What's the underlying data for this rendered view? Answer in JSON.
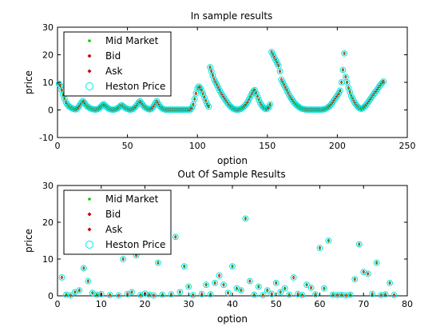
{
  "chart_data": [
    {
      "type": "scatter",
      "title": "In sample results",
      "xlabel": "option",
      "ylabel": "price",
      "xlim": [
        0,
        250
      ],
      "ylim": [
        -10,
        30
      ],
      "x_ticks": [
        "0",
        "50",
        "100",
        "150",
        "200",
        "250"
      ],
      "y_ticks": [
        "-10",
        "0",
        "10",
        "20",
        "30"
      ],
      "grid": false,
      "legend_position": "top-left",
      "series": [
        {
          "name": "Mid Market",
          "color": "#00cc00",
          "marker": "dot"
        },
        {
          "name": "Bid",
          "color": "#cc0000",
          "marker": "diamond"
        },
        {
          "name": "Ask",
          "color": "#cc0000",
          "marker": "diamond"
        },
        {
          "name": "Heston Price",
          "color": "#00e5e5",
          "marker": "circle"
        }
      ],
      "points": [
        [
          1,
          9.5
        ],
        [
          2,
          8.8
        ],
        [
          3,
          7.2
        ],
        [
          4,
          5.5
        ],
        [
          5,
          4
        ],
        [
          6,
          2.8
        ],
        [
          7,
          2
        ],
        [
          8,
          1.4
        ],
        [
          9,
          1
        ],
        [
          10,
          0.7
        ],
        [
          11,
          0.5
        ],
        [
          12,
          0.3
        ],
        [
          13,
          0.2
        ],
        [
          14,
          0.5
        ],
        [
          15,
          1
        ],
        [
          16,
          1.8
        ],
        [
          17,
          2.6
        ],
        [
          18,
          3.2
        ],
        [
          19,
          2.8
        ],
        [
          20,
          2
        ],
        [
          21,
          1.4
        ],
        [
          22,
          1
        ],
        [
          23,
          0.7
        ],
        [
          24,
          0.5
        ],
        [
          25,
          0.3
        ],
        [
          26,
          0.2
        ],
        [
          27,
          0.1
        ],
        [
          28,
          0.2
        ],
        [
          29,
          0.4
        ],
        [
          30,
          0.7
        ],
        [
          31,
          1.2
        ],
        [
          32,
          1.7
        ],
        [
          33,
          2.1
        ],
        [
          34,
          1.6
        ],
        [
          35,
          1.1
        ],
        [
          36,
          0.7
        ],
        [
          37,
          0.4
        ],
        [
          38,
          0.2
        ],
        [
          39,
          0.1
        ],
        [
          40,
          0.1
        ],
        [
          41,
          0.2
        ],
        [
          42,
          0.4
        ],
        [
          43,
          0.6
        ],
        [
          44,
          1
        ],
        [
          45,
          1.5
        ],
        [
          46,
          1.7
        ],
        [
          47,
          1.3
        ],
        [
          48,
          0.9
        ],
        [
          49,
          0.6
        ],
        [
          50,
          0.4
        ],
        [
          51,
          0.2
        ],
        [
          52,
          0.1
        ],
        [
          53,
          0.2
        ],
        [
          54,
          0.4
        ],
        [
          55,
          0.8
        ],
        [
          56,
          1.3
        ],
        [
          57,
          2
        ],
        [
          58,
          2.7
        ],
        [
          59,
          3.1
        ],
        [
          60,
          2.5
        ],
        [
          61,
          1.8
        ],
        [
          62,
          1.2
        ],
        [
          63,
          0.8
        ],
        [
          64,
          0.5
        ],
        [
          65,
          0.3
        ],
        [
          66,
          0.2
        ],
        [
          67,
          0.4
        ],
        [
          68,
          0.9
        ],
        [
          69,
          1.6
        ],
        [
          70,
          2.5
        ],
        [
          71,
          3.2
        ],
        [
          72,
          2.3
        ],
        [
          73,
          1.5
        ],
        [
          74,
          0.9
        ],
        [
          75,
          0.5
        ],
        [
          76,
          0.3
        ],
        [
          77,
          0.1
        ],
        [
          78,
          0.1
        ],
        [
          79,
          0.1
        ],
        [
          80,
          0.1
        ],
        [
          81,
          0.1
        ],
        [
          82,
          0.1
        ],
        [
          83,
          0.1
        ],
        [
          84,
          0.1
        ],
        [
          85,
          0.1
        ],
        [
          86,
          0.1
        ],
        [
          87,
          0.1
        ],
        [
          88,
          0.1
        ],
        [
          89,
          0.1
        ],
        [
          90,
          0.1
        ],
        [
          91,
          0.1
        ],
        [
          92,
          0.1
        ],
        [
          93,
          0.1
        ],
        [
          94,
          0.1
        ],
        [
          95,
          0.2
        ],
        [
          96,
          0.8
        ],
        [
          97,
          2
        ],
        [
          98,
          4
        ],
        [
          99,
          6
        ],
        [
          100,
          7.8
        ],
        [
          101,
          8.5
        ],
        [
          102,
          8
        ],
        [
          103,
          7
        ],
        [
          104,
          5.8
        ],
        [
          105,
          4.5
        ],
        [
          106,
          3.2
        ],
        [
          107,
          2
        ],
        [
          108,
          1.2
        ],
        [
          109,
          15.5
        ],
        [
          110,
          14
        ],
        [
          111,
          12.5
        ],
        [
          112,
          11
        ],
        [
          113,
          10
        ],
        [
          114,
          9
        ],
        [
          115,
          8
        ],
        [
          116,
          7
        ],
        [
          117,
          6
        ],
        [
          118,
          5.2
        ],
        [
          119,
          4.4
        ],
        [
          120,
          3.6
        ],
        [
          121,
          2.9
        ],
        [
          122,
          2.2
        ],
        [
          123,
          1.6
        ],
        [
          124,
          1.1
        ],
        [
          125,
          0.7
        ],
        [
          126,
          0.4
        ],
        [
          127,
          0.2
        ],
        [
          128,
          0.1
        ],
        [
          129,
          0.1
        ],
        [
          130,
          0.2
        ],
        [
          131,
          0.4
        ],
        [
          132,
          0.7
        ],
        [
          133,
          1.1
        ],
        [
          134,
          1.6
        ],
        [
          135,
          2.2
        ],
        [
          136,
          3
        ],
        [
          137,
          4
        ],
        [
          138,
          5
        ],
        [
          139,
          6
        ],
        [
          140,
          6.8
        ],
        [
          141,
          7.2
        ],
        [
          142,
          6
        ],
        [
          143,
          4.8
        ],
        [
          144,
          3.6
        ],
        [
          145,
          2.5
        ],
        [
          146,
          1.6
        ],
        [
          147,
          1
        ],
        [
          148,
          0.6
        ],
        [
          149,
          0.3
        ],
        [
          150,
          0.5
        ],
        [
          151,
          1
        ],
        [
          152,
          2
        ],
        [
          153,
          21
        ],
        [
          154,
          20
        ],
        [
          155,
          19
        ],
        [
          156,
          18
        ],
        [
          157,
          17
        ],
        [
          158,
          16
        ],
        [
          159,
          14
        ],
        [
          160,
          11
        ],
        [
          161,
          10
        ],
        [
          162,
          9
        ],
        [
          163,
          8
        ],
        [
          164,
          7
        ],
        [
          165,
          6
        ],
        [
          166,
          5
        ],
        [
          167,
          4.2
        ],
        [
          168,
          3.5
        ],
        [
          169,
          2.8
        ],
        [
          170,
          2.2
        ],
        [
          171,
          1.7
        ],
        [
          172,
          1.3
        ],
        [
          173,
          0.9
        ],
        [
          174,
          0.6
        ],
        [
          175,
          0.4
        ],
        [
          176,
          0.3
        ],
        [
          177,
          0.2
        ],
        [
          178,
          0.1
        ],
        [
          179,
          0.1
        ],
        [
          180,
          0.1
        ],
        [
          181,
          0.1
        ],
        [
          182,
          0.1
        ],
        [
          183,
          0.1
        ],
        [
          184,
          0.1
        ],
        [
          185,
          0.1
        ],
        [
          186,
          0.1
        ],
        [
          187,
          0.1
        ],
        [
          188,
          0.1
        ],
        [
          189,
          0.1
        ],
        [
          190,
          0.2
        ],
        [
          191,
          0.3
        ],
        [
          192,
          0.5
        ],
        [
          193,
          0.8
        ],
        [
          194,
          1.2
        ],
        [
          195,
          1.7
        ],
        [
          196,
          2.3
        ],
        [
          197,
          3
        ],
        [
          198,
          3.8
        ],
        [
          199,
          4.5
        ],
        [
          200,
          5.2
        ],
        [
          201,
          6
        ],
        [
          202,
          7
        ],
        [
          203,
          10
        ],
        [
          204,
          14.5
        ],
        [
          205,
          20.5
        ],
        [
          206,
          12
        ],
        [
          207,
          10
        ],
        [
          208,
          8
        ],
        [
          209,
          6.5
        ],
        [
          210,
          5
        ],
        [
          211,
          4
        ],
        [
          212,
          3
        ],
        [
          213,
          2.2
        ],
        [
          214,
          1.5
        ],
        [
          215,
          1
        ],
        [
          216,
          0.6
        ],
        [
          217,
          0.4
        ],
        [
          218,
          0.6
        ],
        [
          219,
          1
        ],
        [
          220,
          1.5
        ],
        [
          221,
          2.1
        ],
        [
          222,
          2.8
        ],
        [
          223,
          3.5
        ],
        [
          224,
          4.2
        ],
        [
          225,
          5
        ],
        [
          226,
          5.7
        ],
        [
          227,
          6.4
        ],
        [
          228,
          7
        ],
        [
          229,
          7.8
        ],
        [
          230,
          8.5
        ],
        [
          231,
          9.2
        ],
        [
          232,
          9.8
        ],
        [
          233,
          10.3
        ]
      ]
    },
    {
      "type": "scatter",
      "title": "Out Of Sample Results",
      "xlabel": "option",
      "ylabel": "price",
      "xlim": [
        0,
        80
      ],
      "ylim": [
        0,
        30
      ],
      "x_ticks": [
        "0",
        "10",
        "20",
        "30",
        "40",
        "50",
        "60",
        "70",
        "80"
      ],
      "y_ticks": [
        "0",
        "10",
        "20",
        "30"
      ],
      "grid": false,
      "legend_position": "top-left",
      "series": [
        {
          "name": "Mid Market",
          "color": "#00cc00",
          "marker": "dot"
        },
        {
          "name": "Bid",
          "color": "#cc0000",
          "marker": "diamond"
        },
        {
          "name": "Ask",
          "color": "#cc0000",
          "marker": "diamond"
        },
        {
          "name": "Heston Price",
          "color": "#00e5e5",
          "marker": "circle"
        }
      ],
      "points": [
        [
          1,
          5
        ],
        [
          2,
          0.3
        ],
        [
          3,
          0.1
        ],
        [
          4,
          1
        ],
        [
          5,
          1.5
        ],
        [
          6,
          7.5
        ],
        [
          7,
          4
        ],
        [
          8,
          0.8
        ],
        [
          9,
          0.3
        ],
        [
          10,
          0.5
        ],
        [
          12,
          0.2
        ],
        [
          14,
          0.1
        ],
        [
          15,
          10
        ],
        [
          16,
          0.5
        ],
        [
          17,
          1
        ],
        [
          18,
          11
        ],
        [
          19,
          0.2
        ],
        [
          20,
          0.6
        ],
        [
          21,
          0.3
        ],
        [
          22,
          0.1
        ],
        [
          23,
          9
        ],
        [
          24,
          0.3
        ],
        [
          25,
          12
        ],
        [
          26,
          0.4
        ],
        [
          27,
          16
        ],
        [
          28,
          1
        ],
        [
          29,
          8
        ],
        [
          30,
          2.5
        ],
        [
          31,
          0.2
        ],
        [
          33,
          0.5
        ],
        [
          34,
          3
        ],
        [
          35,
          0.4
        ],
        [
          36,
          3.5
        ],
        [
          37,
          5.5
        ],
        [
          38,
          3
        ],
        [
          39,
          0.8
        ],
        [
          40,
          8
        ],
        [
          41,
          2
        ],
        [
          42,
          1.5
        ],
        [
          43,
          21
        ],
        [
          44,
          4
        ],
        [
          45,
          0.3
        ],
        [
          46,
          2.5
        ],
        [
          47,
          0.2
        ],
        [
          48,
          1.5
        ],
        [
          49,
          0.5
        ],
        [
          50,
          3.5
        ],
        [
          51,
          1
        ],
        [
          52,
          2
        ],
        [
          53,
          0.3
        ],
        [
          54,
          5
        ],
        [
          55,
          0.5
        ],
        [
          56,
          0.2
        ],
        [
          57,
          3
        ],
        [
          58,
          2.2
        ],
        [
          59,
          0.4
        ],
        [
          60,
          13
        ],
        [
          61,
          2
        ],
        [
          62,
          15
        ],
        [
          63,
          0.3
        ],
        [
          64,
          0.2
        ],
        [
          65,
          0.3
        ],
        [
          66,
          0.1
        ],
        [
          67,
          0.3
        ],
        [
          68,
          4.5
        ],
        [
          69,
          14
        ],
        [
          70,
          6.5
        ],
        [
          71,
          6
        ],
        [
          72,
          0.5
        ],
        [
          73,
          9
        ],
        [
          74,
          0.2
        ],
        [
          75,
          0.4
        ],
        [
          76,
          3.5
        ],
        [
          77,
          0.2
        ]
      ]
    }
  ]
}
